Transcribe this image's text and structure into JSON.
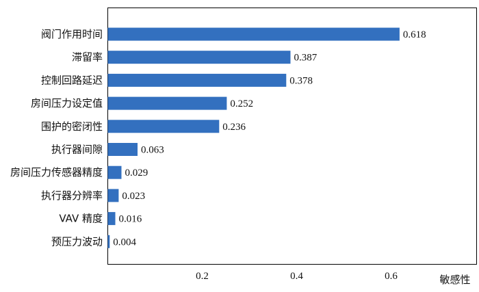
{
  "chart_data": {
    "type": "bar",
    "orientation": "horizontal",
    "categories": [
      "阀门作用时间",
      "滞留率",
      "控制回路延迟",
      "房间压力设定值",
      "围护的密闭性",
      "执行器间隙",
      "房间压力传感器精度",
      "执行器分辨率",
      "VAV 精度",
      "预压力波动"
    ],
    "values": [
      0.618,
      0.387,
      0.378,
      0.252,
      0.236,
      0.063,
      0.029,
      0.023,
      0.016,
      0.004
    ],
    "value_labels": [
      "0.618",
      "0.387",
      "0.378",
      "0.252",
      "0.236",
      "0.063",
      "0.029",
      "0.023",
      "0.016",
      "0.004"
    ],
    "xlabel": "敏感性",
    "xticks": [
      0.2,
      0.4,
      0.6
    ],
    "xtick_labels": [
      "0.2",
      "0.4",
      "0.6"
    ],
    "xlim": [
      0,
      0.74
    ],
    "grid": false,
    "legend": "none",
    "bar_color": "#3370bf"
  }
}
